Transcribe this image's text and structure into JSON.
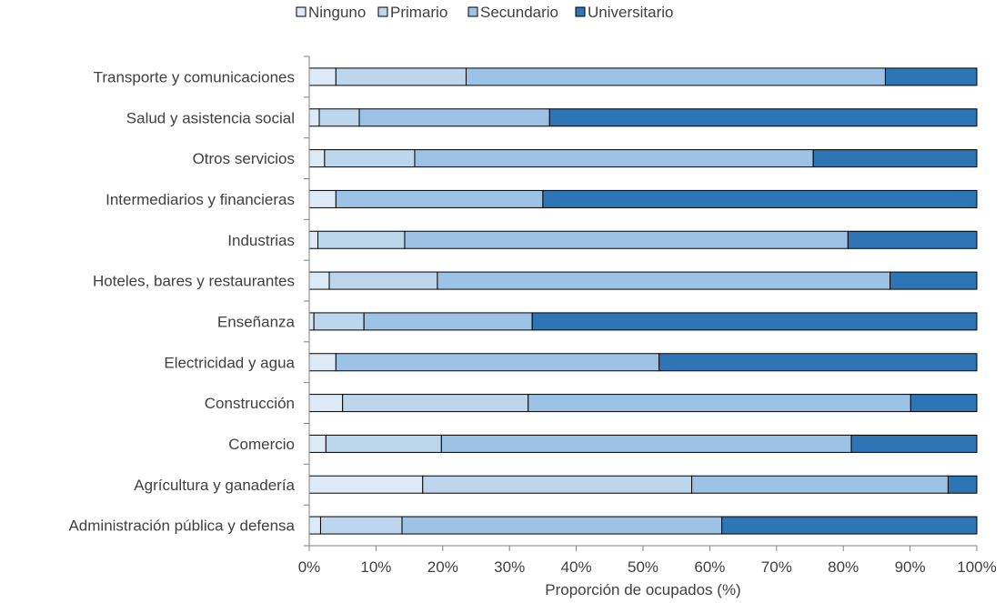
{
  "chart_data": {
    "type": "bar",
    "orientation": "horizontal",
    "stacked": true,
    "xlabel": "Proporción de ocupados (%)",
    "xlim": [
      0,
      100
    ],
    "x_ticks": [
      "0%",
      "10%",
      "20%",
      "30%",
      "40%",
      "50%",
      "60%",
      "70%",
      "80%",
      "90%",
      "100%"
    ],
    "legend_position": "top",
    "grid": false,
    "categories": [
      "Transporte y comunicaciones",
      "Salud y asistencia social",
      "Otros servicios",
      "Intermediarios y financieras",
      "Industrias",
      "Hoteles, bares y restaurantes",
      "Enseñanza",
      "Electricidad y agua",
      "Construcción",
      "Comercio",
      "Agrícultura y ganadería",
      "Administración pública y defensa"
    ],
    "series": [
      {
        "name": "Ninguno",
        "color": "#dce9f6",
        "values": [
          4.0,
          1.5,
          2.3,
          4.0,
          1.3,
          3.0,
          0.7,
          4.0,
          5.0,
          2.5,
          17.0,
          1.7
        ]
      },
      {
        "name": "Primario",
        "color": "#bcd6ee",
        "values": [
          19.5,
          6.0,
          13.5,
          0.0,
          13.0,
          16.2,
          7.5,
          0.0,
          27.8,
          17.3,
          40.3,
          12.2
        ]
      },
      {
        "name": "Secundario",
        "color": "#9cc2e5",
        "values": [
          62.8,
          28.5,
          59.7,
          31.0,
          66.4,
          67.8,
          25.2,
          48.4,
          57.3,
          61.4,
          38.4,
          47.9
        ]
      },
      {
        "name": "Universitario",
        "color": "#2e75b6",
        "values": [
          13.7,
          64.0,
          24.5,
          65.0,
          19.3,
          13.0,
          66.6,
          47.6,
          9.9,
          18.8,
          4.3,
          38.2
        ]
      }
    ]
  }
}
